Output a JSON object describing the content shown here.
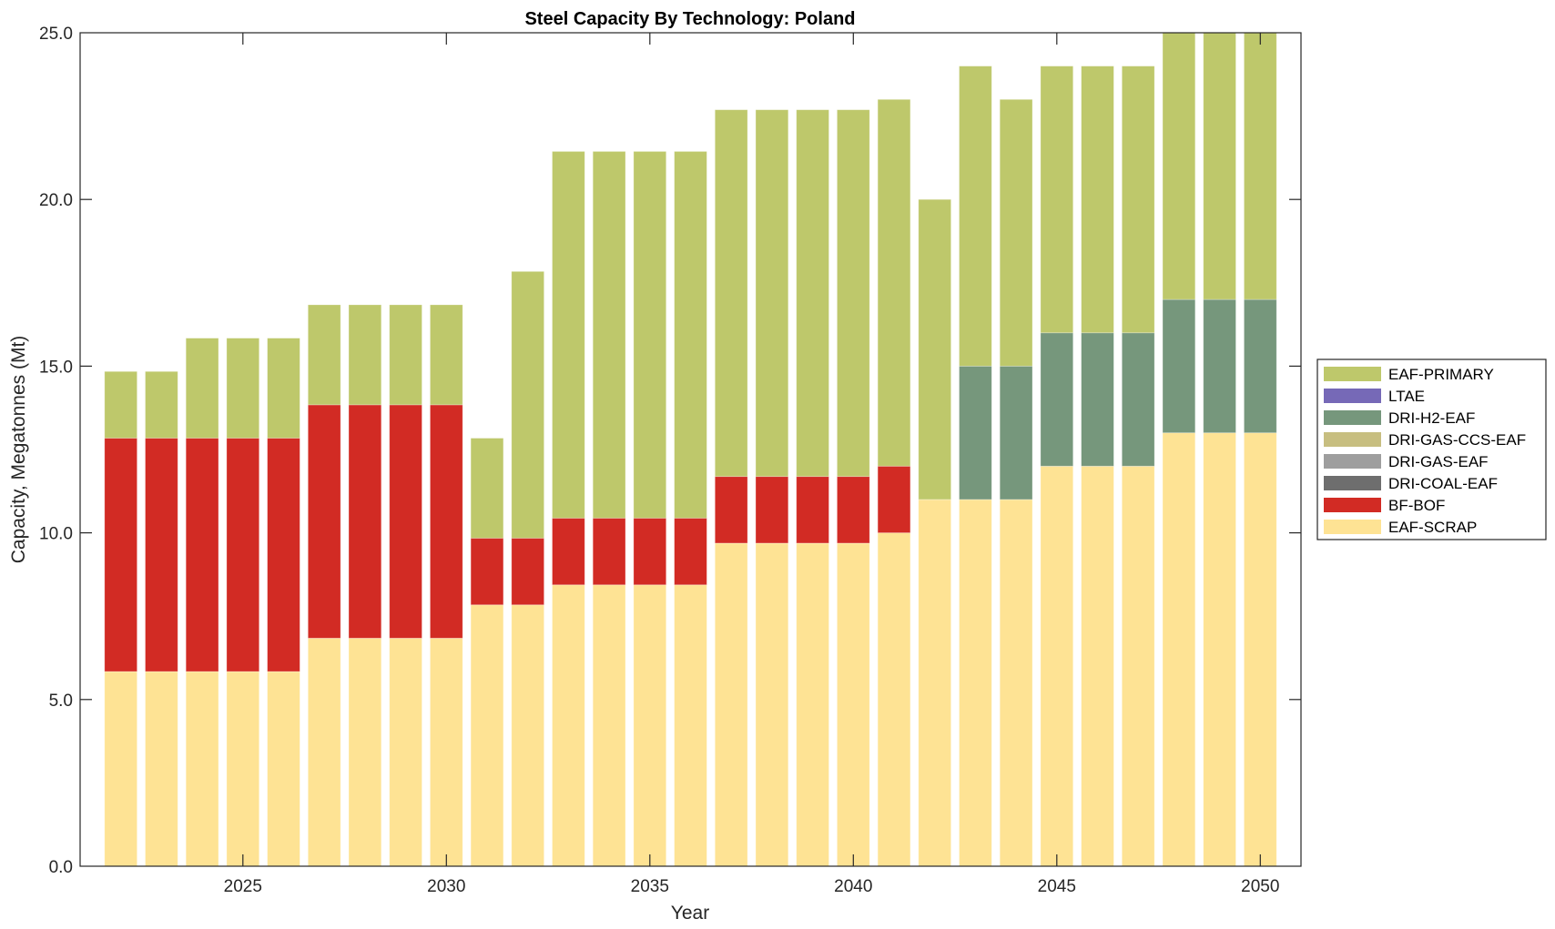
{
  "chart_data": {
    "type": "bar",
    "stacked": true,
    "title": "Steel Capacity By Technology: Poland",
    "xlabel": "Year",
    "ylabel": "Capacity, Megatonnes (Mt)",
    "xlim": [
      2021,
      2051
    ],
    "ylim": [
      0,
      25
    ],
    "xticks": [
      2025,
      2030,
      2035,
      2040,
      2045,
      2050
    ],
    "yticks": [
      0,
      5,
      10,
      15,
      20,
      25
    ],
    "ytick_labels": [
      "0.0",
      "5.0",
      "10.0",
      "15.0",
      "20.0",
      "25.0"
    ],
    "grid": false,
    "legend_position": "right",
    "categories": [
      2022,
      2023,
      2024,
      2025,
      2026,
      2027,
      2028,
      2029,
      2030,
      2031,
      2032,
      2033,
      2034,
      2035,
      2036,
      2037,
      2038,
      2039,
      2040,
      2041,
      2042,
      2043,
      2044,
      2045,
      2046,
      2047,
      2048,
      2049,
      2050
    ],
    "series": [
      {
        "name": "EAF-SCRAP",
        "color": "#FEE394",
        "values": [
          5.84,
          5.84,
          5.84,
          5.84,
          5.84,
          6.84,
          6.84,
          6.84,
          6.84,
          7.84,
          7.84,
          8.44,
          8.44,
          8.44,
          8.44,
          9.69,
          9.69,
          9.69,
          9.69,
          10.0,
          11.0,
          11.0,
          11.0,
          12.0,
          12.0,
          12.0,
          13.0,
          13.0,
          13.0
        ]
      },
      {
        "name": "BF-BOF",
        "color": "#D22B24",
        "values": [
          7.0,
          7.0,
          7.0,
          7.0,
          7.0,
          7.0,
          7.0,
          7.0,
          7.0,
          2.0,
          2.0,
          2.0,
          2.0,
          2.0,
          2.0,
          2.0,
          2.0,
          2.0,
          2.0,
          2.0,
          0,
          0,
          0,
          0,
          0,
          0,
          0,
          0,
          0
        ]
      },
      {
        "name": "DRI-COAL-EAF",
        "color": "#6E6E6E",
        "values": [
          0,
          0,
          0,
          0,
          0,
          0,
          0,
          0,
          0,
          0,
          0,
          0,
          0,
          0,
          0,
          0,
          0,
          0,
          0,
          0,
          0,
          0,
          0,
          0,
          0,
          0,
          0,
          0,
          0
        ]
      },
      {
        "name": "DRI-GAS-EAF",
        "color": "#9E9E9E",
        "values": [
          0,
          0,
          0,
          0,
          0,
          0,
          0,
          0,
          0,
          0,
          0,
          0,
          0,
          0,
          0,
          0,
          0,
          0,
          0,
          0,
          0,
          0,
          0,
          0,
          0,
          0,
          0,
          0,
          0
        ]
      },
      {
        "name": "DRI-GAS-CCS-EAF",
        "color": "#C7BE80",
        "values": [
          0,
          0,
          0,
          0,
          0,
          0,
          0,
          0,
          0,
          0,
          0,
          0,
          0,
          0,
          0,
          0,
          0,
          0,
          0,
          0,
          0,
          0,
          0,
          0,
          0,
          0,
          0,
          0,
          0
        ]
      },
      {
        "name": "DRI-H2-EAF",
        "color": "#76977C",
        "values": [
          0,
          0,
          0,
          0,
          0,
          0,
          0,
          0,
          0,
          0,
          0,
          0,
          0,
          0,
          0,
          0,
          0,
          0,
          0,
          0,
          0,
          4.0,
          4.0,
          4.0,
          4.0,
          4.0,
          4.0,
          4.0,
          4.0
        ]
      },
      {
        "name": "LTAE",
        "color": "#7669B7",
        "values": [
          0,
          0,
          0,
          0,
          0,
          0,
          0,
          0,
          0,
          0,
          0,
          0,
          0,
          0,
          0,
          0,
          0,
          0,
          0,
          0,
          0,
          0,
          0,
          0,
          0,
          0,
          0,
          0,
          0
        ]
      },
      {
        "name": "EAF-PRIMARY",
        "color": "#BEC86B",
        "values": [
          2.0,
          2.0,
          3.0,
          3.0,
          3.0,
          3.0,
          3.0,
          3.0,
          3.0,
          3.0,
          8.0,
          11.0,
          11.0,
          11.0,
          11.0,
          11.0,
          11.0,
          11.0,
          11.0,
          11.0,
          9.0,
          9.0,
          8.0,
          8.0,
          8.0,
          8.0,
          8.0,
          8.0,
          8.0
        ]
      }
    ],
    "legend_order": [
      "EAF-PRIMARY",
      "LTAE",
      "DRI-H2-EAF",
      "DRI-GAS-CCS-EAF",
      "DRI-GAS-EAF",
      "DRI-COAL-EAF",
      "BF-BOF",
      "EAF-SCRAP"
    ]
  }
}
